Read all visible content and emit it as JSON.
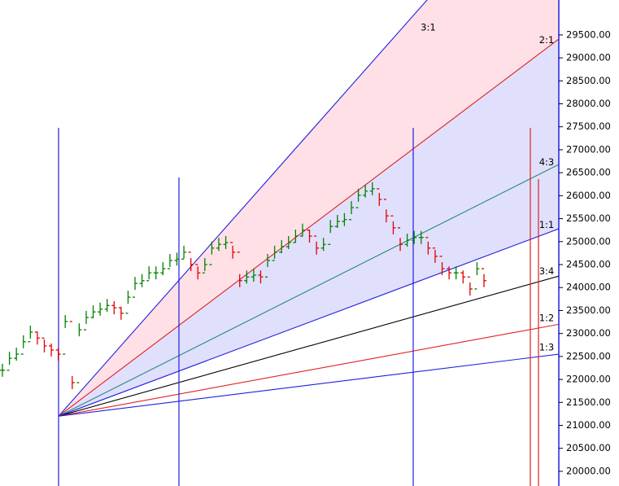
{
  "chart_data": {
    "type": "ohlc",
    "values": [
      22200,
      22460,
      22550,
      22820,
      23030,
      22900,
      22730,
      22640,
      22550,
      23260,
      21930,
      23080,
      23350,
      23470,
      23530,
      23610,
      23560,
      23440,
      23790,
      24090,
      24150,
      24320,
      24320,
      24410,
      24590,
      24620,
      24770,
      24500,
      24320,
      24500,
      24860,
      24940,
      24980,
      24770,
      24150,
      24230,
      24270,
      24230,
      24590,
      24770,
      24890,
      24980,
      25120,
      25250,
      25120,
      24860,
      24940,
      25330,
      25440,
      25480,
      25740,
      26010,
      26100,
      26150,
      25920,
      25560,
      25300,
      24940,
      25030,
      25090,
      25090,
      24860,
      24680,
      24410,
      24320,
      24320,
      24230,
      23970,
      24410,
      24150
    ],
    "up_color": "#008000",
    "down_color": "#e00000",
    "ylim": [
      19680,
      30260
    ],
    "yticks": [
      {
        "value": 20000,
        "label": "20000.00"
      },
      {
        "value": 20500,
        "label": "20500.00"
      },
      {
        "value": 21000,
        "label": "21000.00"
      },
      {
        "value": 21500,
        "label": "21500.00"
      },
      {
        "value": 22000,
        "label": "22000.00"
      },
      {
        "value": 22500,
        "label": "22500.00"
      },
      {
        "value": 23000,
        "label": "23000.00"
      },
      {
        "value": 23500,
        "label": "23500.00"
      },
      {
        "value": 24000,
        "label": "24000.00"
      },
      {
        "value": 24500,
        "label": "24500.00"
      },
      {
        "value": 25000,
        "label": "25000.00"
      },
      {
        "value": 25500,
        "label": "25500.00"
      },
      {
        "value": 26000,
        "label": "26000.00"
      },
      {
        "value": 26500,
        "label": "26500.00"
      },
      {
        "value": 27000,
        "label": "27000.00"
      },
      {
        "value": 27500,
        "label": "27500.00"
      },
      {
        "value": 28000,
        "label": "28000.00"
      },
      {
        "value": 28500,
        "label": "28500.00"
      },
      {
        "value": 29000,
        "label": "29000.00"
      },
      {
        "value": 29500,
        "label": "29500.00"
      }
    ],
    "fan": {
      "origin": 21200,
      "lines": [
        {
          "name": "3:1",
          "color": "#2020e0",
          "end": 33500
        },
        {
          "name": "2:1",
          "color": "#e02020",
          "end": 29410
        },
        {
          "name": "4:3",
          "color": "#2a8a7a",
          "end": 26680
        },
        {
          "name": "1:1",
          "color": "#2020e0",
          "end": 25280
        },
        {
          "name": "3:4",
          "color": "#000000",
          "end": 24250
        },
        {
          "name": "1:2",
          "color": "#e02020",
          "end": 23200
        },
        {
          "name": "1:3",
          "color": "#2020e0",
          "end": 22550
        }
      ]
    }
  }
}
